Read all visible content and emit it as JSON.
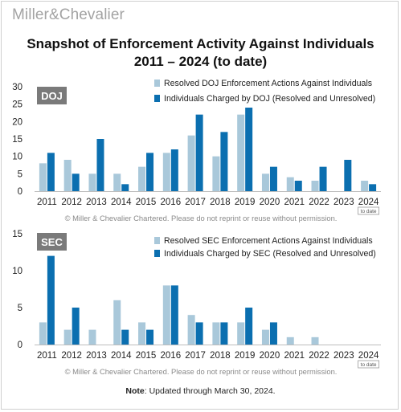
{
  "logo": {
    "part1": "Miller",
    "amp": "&",
    "part2": "Chevalier"
  },
  "title": {
    "line1": "Snapshot of Enforcement Activity Against Individuals",
    "line2": "2011 – 2024 (to date)"
  },
  "colors": {
    "light": "#a9c8da",
    "dark": "#0b6fb0",
    "badge": "#7a7a7a"
  },
  "chart_data": [
    {
      "type": "bar",
      "badge": "DOJ",
      "categories": [
        "2011",
        "2012",
        "2013",
        "2014",
        "2015",
        "2016",
        "2017",
        "2018",
        "2019",
        "2020",
        "2021",
        "2022",
        "2023",
        "2024"
      ],
      "to_date_label": "to date",
      "series": [
        {
          "name": "Resolved DOJ Enforcement Actions Against Individuals",
          "values": [
            8,
            9,
            5,
            5,
            7,
            11,
            16,
            10,
            22,
            5,
            4,
            3,
            0,
            3
          ]
        },
        {
          "name": "Individuals Charged by DOJ (Resolved and Unresolved)",
          "values": [
            11,
            5,
            15,
            2,
            11,
            12,
            22,
            17,
            24,
            7,
            3,
            7,
            9,
            2
          ]
        }
      ],
      "ylim": [
        0,
        30
      ],
      "yticks": [
        0,
        5,
        10,
        15,
        20,
        25,
        30
      ],
      "copyright": "© Miller & Chevalier Chartered. Please do not reprint or reuse without permission."
    },
    {
      "type": "bar",
      "badge": "SEC",
      "categories": [
        "2011",
        "2012",
        "2013",
        "2014",
        "2015",
        "2016",
        "2017",
        "2018",
        "2019",
        "2020",
        "2021",
        "2022",
        "2023",
        "2024"
      ],
      "to_date_label": "to date",
      "series": [
        {
          "name": "Resolved SEC Enforcement Actions Against Individuals",
          "values": [
            3,
            2,
            2,
            6,
            3,
            8,
            4,
            3,
            3,
            2,
            1,
            1,
            0,
            0
          ]
        },
        {
          "name": "Individuals Charged by SEC (Resolved and Unresolved)",
          "values": [
            12,
            5,
            0,
            2,
            2,
            8,
            3,
            3,
            5,
            3,
            0,
            0,
            0,
            0
          ]
        }
      ],
      "ylim": [
        0,
        15
      ],
      "yticks": [
        0,
        5,
        10,
        15
      ],
      "copyright": "© Miller & Chevalier Chartered. Please do not reprint or reuse without permission."
    }
  ],
  "note": {
    "label": "Note",
    "text": ": Updated through March 30, 2024."
  }
}
